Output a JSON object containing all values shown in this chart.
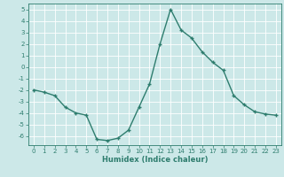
{
  "x": [
    0,
    1,
    2,
    3,
    4,
    5,
    6,
    7,
    8,
    9,
    10,
    11,
    12,
    13,
    14,
    15,
    16,
    17,
    18,
    19,
    20,
    21,
    22,
    23
  ],
  "y": [
    -2.0,
    -2.2,
    -2.5,
    -3.5,
    -4.0,
    -4.2,
    -6.3,
    -6.4,
    -6.2,
    -5.5,
    -3.5,
    -1.5,
    2.0,
    5.0,
    3.2,
    2.5,
    1.3,
    0.4,
    -0.3,
    -2.5,
    -3.3,
    -3.9,
    -4.1,
    -4.2
  ],
  "line_color": "#2e7d6e",
  "marker": "+",
  "bg_color": "#cce8e8",
  "grid_color": "#ffffff",
  "ylim": [
    -6.8,
    5.5
  ],
  "xlim": [
    -0.5,
    23.5
  ],
  "yticks": [
    -6,
    -5,
    -4,
    -3,
    -2,
    -1,
    0,
    1,
    2,
    3,
    4,
    5
  ],
  "xticks": [
    0,
    1,
    2,
    3,
    4,
    5,
    6,
    7,
    8,
    9,
    10,
    11,
    12,
    13,
    14,
    15,
    16,
    17,
    18,
    19,
    20,
    21,
    22,
    23
  ],
  "xlabel": "Humidex (Indice chaleur)",
  "xlabel_fontsize": 6,
  "tick_fontsize": 5,
  "line_width": 1.0,
  "marker_size": 3
}
